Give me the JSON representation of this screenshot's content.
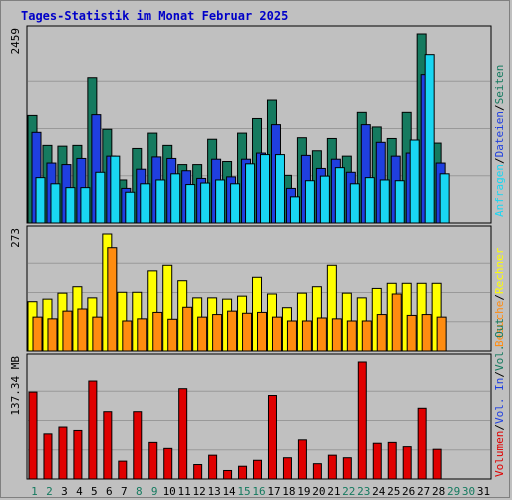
{
  "title": "Tages-Statistik im Monat Februar 2025",
  "colors": {
    "anfragen": "#157a5f",
    "dateien": "#1f3fe0",
    "seiten": "#19d6f2",
    "besuche": "#ffff00",
    "rechner": "#ff8c10",
    "volumen": "#e00000",
    "gridline": "#999999",
    "weekend_label": "#157a5f",
    "weekday_label": "#000000"
  },
  "chart_data": [
    {
      "type": "bar",
      "ylabel": "2459",
      "ymax": 2459,
      "categories": [
        "1",
        "2",
        "3",
        "4",
        "5",
        "6",
        "7",
        "8",
        "9",
        "10",
        "11",
        "12",
        "13",
        "14",
        "15",
        "16",
        "17",
        "18",
        "19",
        "20",
        "21",
        "22",
        "23",
        "24",
        "25",
        "26",
        "27",
        "28",
        "29",
        "30",
        "31"
      ],
      "series": [
        {
          "name": "Anfragen",
          "values": [
            1400,
            1010,
            1000,
            1010,
            1890,
            1220,
            560,
            970,
            1170,
            1010,
            760,
            760,
            1090,
            800,
            1170,
            1360,
            1600,
            620,
            1110,
            940,
            1100,
            870,
            1440,
            1250,
            1100,
            1440,
            2459,
            1040,
            0,
            0,
            0
          ]
        },
        {
          "name": "Dateien",
          "values": [
            1180,
            780,
            760,
            840,
            1410,
            870,
            450,
            700,
            860,
            840,
            680,
            580,
            830,
            600,
            830,
            910,
            1280,
            450,
            880,
            710,
            830,
            660,
            1280,
            1050,
            870,
            910,
            1930,
            780,
            0,
            0,
            0
          ]
        },
        {
          "name": "Seiten",
          "values": [
            590,
            510,
            460,
            460,
            660,
            870,
            400,
            510,
            560,
            640,
            500,
            520,
            560,
            510,
            770,
            890,
            890,
            340,
            550,
            610,
            720,
            510,
            590,
            560,
            550,
            1080,
            2190,
            640,
            0,
            0,
            0
          ]
        }
      ],
      "series_labels": [
        "Anfragen",
        "Dateien",
        "Seiten"
      ]
    },
    {
      "type": "bar",
      "ylabel": "273",
      "ymax": 273,
      "categories": [
        "1",
        "2",
        "3",
        "4",
        "5",
        "6",
        "7",
        "8",
        "9",
        "10",
        "11",
        "12",
        "13",
        "14",
        "15",
        "16",
        "17",
        "18",
        "19",
        "20",
        "21",
        "22",
        "23",
        "24",
        "25",
        "26",
        "27",
        "28",
        "29",
        "30",
        "31"
      ],
      "series": [
        {
          "name": "Besuche",
          "values": [
            115,
            121,
            135,
            150,
            124,
            273,
            137,
            137,
            187,
            200,
            164,
            124,
            124,
            121,
            128,
            172,
            133,
            101,
            135,
            150,
            200,
            135,
            124,
            146,
            158,
            158,
            158,
            158,
            0,
            0,
            0
          ]
        },
        {
          "name": "Rechner",
          "values": [
            79,
            75,
            93,
            98,
            79,
            241,
            70,
            75,
            90,
            74,
            102,
            79,
            85,
            93,
            88,
            90,
            79,
            70,
            70,
            77,
            75,
            70,
            70,
            85,
            133,
            83,
            85,
            79,
            0,
            0,
            0
          ]
        }
      ],
      "series_labels": [
        "Besuche",
        "Rechner"
      ]
    },
    {
      "type": "bar",
      "ylabel": "137.34 MB",
      "ymax": 137.34,
      "categories": [
        "1",
        "2",
        "3",
        "4",
        "5",
        "6",
        "7",
        "8",
        "9",
        "10",
        "11",
        "12",
        "13",
        "14",
        "15",
        "16",
        "17",
        "18",
        "19",
        "20",
        "21",
        "22",
        "23",
        "24",
        "25",
        "26",
        "27",
        "28",
        "29",
        "30",
        "31"
      ],
      "series": [
        {
          "name": "Volumen",
          "values": [
            102,
            53,
            61,
            57,
            115,
            79,
            21,
            79,
            43,
            36,
            106,
            17,
            28,
            10,
            15,
            22,
            98,
            25,
            46,
            18,
            28,
            25,
            137.34,
            42,
            43,
            38,
            83,
            35,
            0,
            0,
            0
          ]
        }
      ],
      "series_labels": [
        "Volumen",
        "Vol. In",
        "Vol. Out"
      ]
    }
  ],
  "x_labels": [
    "1",
    "2",
    "3",
    "4",
    "5",
    "6",
    "7",
    "8",
    "9",
    "10",
    "11",
    "12",
    "13",
    "14",
    "15",
    "16",
    "17",
    "18",
    "19",
    "20",
    "21",
    "22",
    "23",
    "24",
    "25",
    "26",
    "27",
    "28",
    "29",
    "30",
    "31"
  ],
  "weekend_days": [
    "1",
    "2",
    "8",
    "9",
    "15",
    "16",
    "22",
    "23",
    "29",
    "30"
  ],
  "legend": {
    "sep": "/",
    "top": [
      "Anfragen",
      "Dateien",
      "Seiten"
    ],
    "mid": [
      "Besuche",
      "Rechner"
    ],
    "bot": [
      "Volumen",
      "Vol. In",
      "Vol. Out"
    ]
  }
}
